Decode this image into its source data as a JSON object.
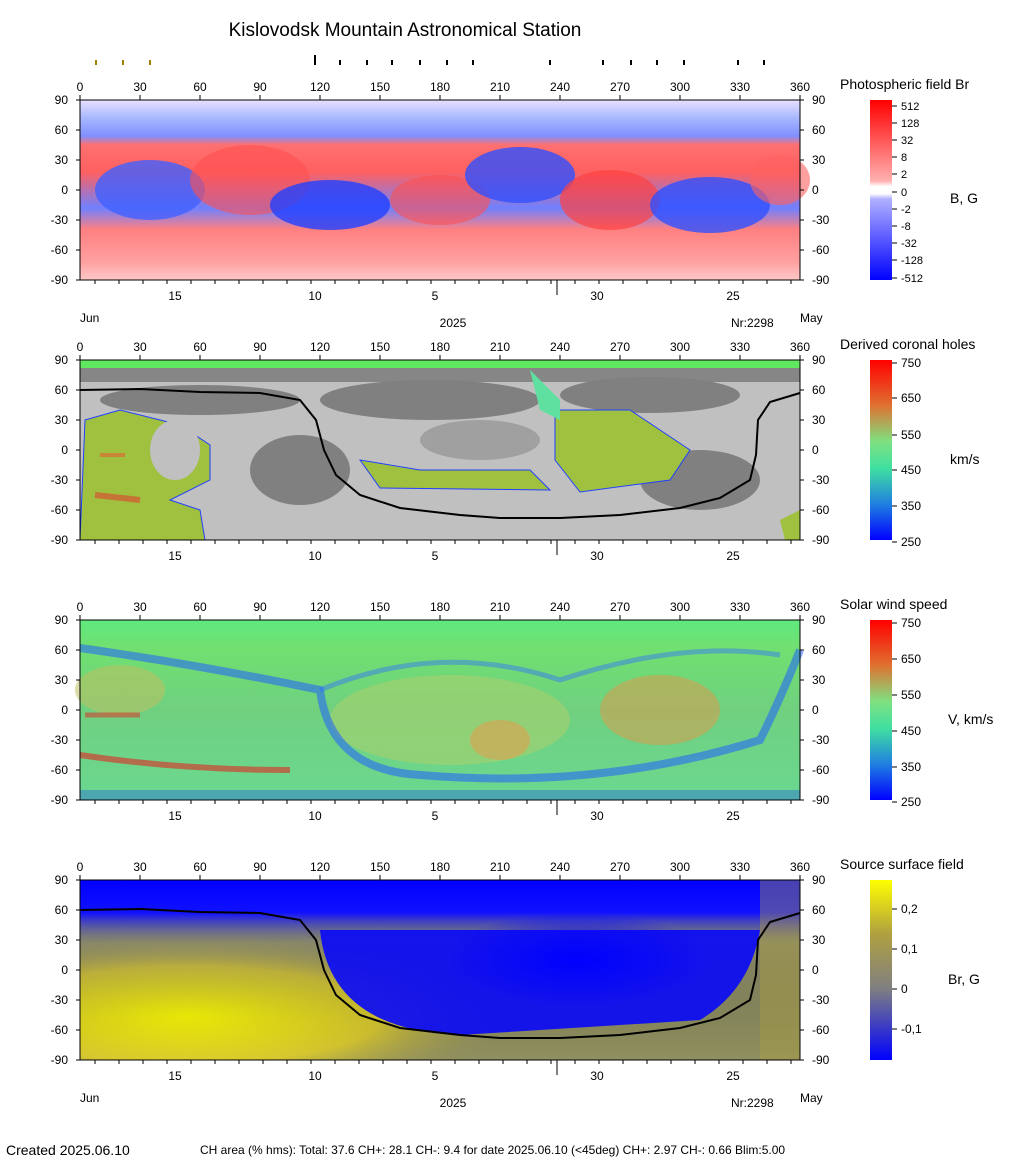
{
  "title": "Kislovodsk Mountain Astronomical Station",
  "footer": {
    "created": "Created  2025.06.10",
    "stats": "CH area (% hms): Total: 37.6 CH+: 28.1   CH-: 9.4 for date 2025.06.10 (<45deg) CH+: 2.97    CH-: 0.66 Blim:5.00"
  },
  "chart_data": [
    {
      "type": "heatmap",
      "title": "Photospheric field Br",
      "colorbar_label": "B, G",
      "colorbar_ticks": [
        "512",
        "128",
        "32",
        "8",
        "2",
        "0",
        "-2",
        "-8",
        "-32",
        "-128",
        "-512"
      ],
      "x_ticks": [
        "0",
        "30",
        "60",
        "90",
        "120",
        "150",
        "180",
        "210",
        "240",
        "270",
        "300",
        "330",
        "360"
      ],
      "y_ticks": [
        "90",
        "60",
        "30",
        "0",
        "-30",
        "-60",
        "-90"
      ],
      "xlim": [
        0,
        360
      ],
      "ylim": [
        -90,
        90
      ],
      "date_ticks": [
        "15",
        "10",
        "5",
        "30",
        "25"
      ],
      "date_left": "Jun",
      "date_center": "2025",
      "carrington": "Nr:2298",
      "date_right": "May",
      "colors": {
        "positive": "#ff0000",
        "negative": "#0000ff",
        "zero": "#f0f0f0"
      }
    },
    {
      "type": "heatmap",
      "title": "Derived coronal holes",
      "colorbar_label": "km/s",
      "colorbar_ticks": [
        "750",
        "650",
        "550",
        "450",
        "350",
        "250"
      ],
      "x_ticks": [
        "0",
        "30",
        "60",
        "90",
        "120",
        "150",
        "180",
        "210",
        "240",
        "270",
        "300",
        "330",
        "360"
      ],
      "y_ticks": [
        "90",
        "60",
        "30",
        "0",
        "-30",
        "-60",
        "-90"
      ],
      "xlim": [
        0,
        360
      ],
      "ylim": [
        -90,
        90
      ],
      "date_ticks": [
        "15",
        "10",
        "5",
        "30",
        "25"
      ],
      "neutral_line": [
        [
          0,
          60
        ],
        [
          30,
          61
        ],
        [
          60,
          58
        ],
        [
          90,
          57
        ],
        [
          110,
          50
        ],
        [
          118,
          30
        ],
        [
          122,
          0
        ],
        [
          128,
          -25
        ],
        [
          140,
          -45
        ],
        [
          160,
          -58
        ],
        [
          190,
          -65
        ],
        [
          210,
          -68
        ],
        [
          240,
          -68
        ],
        [
          270,
          -65
        ],
        [
          300,
          -58
        ],
        [
          320,
          -48
        ],
        [
          335,
          -30
        ],
        [
          338,
          -5
        ],
        [
          339,
          30
        ],
        [
          345,
          48
        ],
        [
          360,
          57
        ]
      ],
      "colors": {
        "open_field": "#c0c0c0",
        "closed_field": "#808080"
      }
    },
    {
      "type": "heatmap",
      "title": "Solar wind speed",
      "colorbar_label": "V, km/s",
      "colorbar_ticks": [
        "750",
        "650",
        "550",
        "450",
        "350",
        "250"
      ],
      "x_ticks": [
        "0",
        "30",
        "60",
        "90",
        "120",
        "150",
        "180",
        "210",
        "240",
        "270",
        "300",
        "330",
        "360"
      ],
      "y_ticks": [
        "90",
        "60",
        "30",
        "0",
        "-30",
        "-60",
        "-90"
      ],
      "xlim": [
        0,
        360
      ],
      "ylim": [
        -90,
        90
      ],
      "date_ticks": [
        "15",
        "10",
        "5",
        "30",
        "25"
      ]
    },
    {
      "type": "heatmap",
      "title": "Source surface field",
      "colorbar_label": "Br, G",
      "colorbar_ticks": [
        "0,2",
        "0,1",
        "0",
        "-0,1"
      ],
      "x_ticks": [
        "0",
        "30",
        "60",
        "90",
        "120",
        "150",
        "180",
        "210",
        "240",
        "270",
        "300",
        "330",
        "360"
      ],
      "y_ticks": [
        "90",
        "60",
        "30",
        "0",
        "-30",
        "-60",
        "-90"
      ],
      "xlim": [
        0,
        360
      ],
      "ylim": [
        -90,
        90
      ],
      "date_ticks": [
        "15",
        "10",
        "5",
        "30",
        "25"
      ],
      "date_left": "Jun",
      "date_center": "2025",
      "carrington": "Nr:2298",
      "date_right": "May",
      "neutral_line": [
        [
          0,
          60
        ],
        [
          30,
          61
        ],
        [
          60,
          58
        ],
        [
          90,
          57
        ],
        [
          110,
          50
        ],
        [
          118,
          30
        ],
        [
          122,
          0
        ],
        [
          128,
          -25
        ],
        [
          140,
          -45
        ],
        [
          160,
          -58
        ],
        [
          190,
          -65
        ],
        [
          210,
          -68
        ],
        [
          240,
          -68
        ],
        [
          270,
          -65
        ],
        [
          300,
          -58
        ],
        [
          320,
          -48
        ],
        [
          335,
          -30
        ],
        [
          338,
          -5
        ],
        [
          339,
          30
        ],
        [
          345,
          48
        ],
        [
          360,
          57
        ]
      ],
      "colors": {
        "positive": "#ffff00",
        "negative": "#0000ff",
        "zero": "#808080"
      }
    }
  ]
}
